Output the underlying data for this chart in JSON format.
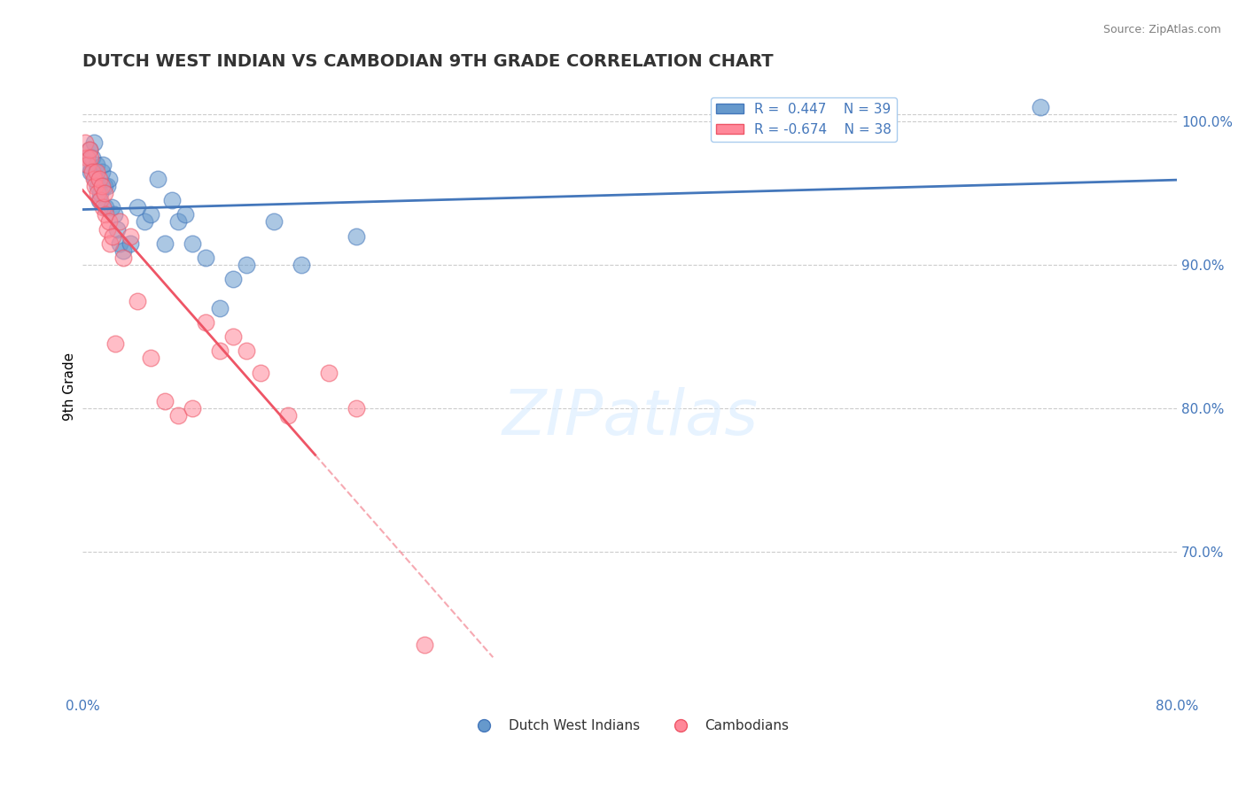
{
  "title": "DUTCH WEST INDIAN VS CAMBODIAN 9TH GRADE CORRELATION CHART",
  "source": "Source: ZipAtlas.com",
  "xlabel_bottom": "",
  "ylabel": "9th Grade",
  "xlim": [
    0.0,
    80.0
  ],
  "ylim": [
    60.0,
    103.0
  ],
  "x_ticks": [
    0.0,
    80.0
  ],
  "x_tick_labels": [
    "0.0%",
    "80.0%"
  ],
  "y_ticks": [
    70.0,
    80.0,
    90.0,
    100.0
  ],
  "y_tick_labels": [
    "70.0%",
    "80.0%",
    "90.0%",
    "100.0%"
  ],
  "blue_color": "#6699CC",
  "pink_color": "#FF8899",
  "blue_color_line": "#4477BB",
  "pink_color_line": "#EE5566",
  "blue_R": 0.447,
  "blue_N": 39,
  "pink_R": -0.674,
  "pink_N": 38,
  "legend_label_blue": "Dutch West Indians",
  "legend_label_pink": "Cambodians",
  "watermark": "ZIPatlas",
  "background_color": "#FFFFFF",
  "grid_color": "#CCCCCC",
  "blue_x": [
    0.3,
    0.5,
    0.6,
    0.7,
    0.8,
    0.9,
    1.0,
    1.1,
    1.2,
    1.3,
    1.4,
    1.5,
    1.6,
    1.7,
    1.8,
    1.9,
    2.1,
    2.3,
    2.5,
    2.7,
    3.0,
    3.5,
    4.0,
    4.5,
    5.0,
    5.5,
    6.0,
    6.5,
    7.0,
    7.5,
    8.0,
    9.0,
    10.0,
    11.0,
    12.0,
    14.0,
    16.0,
    20.0,
    70.0
  ],
  "blue_y": [
    97.0,
    98.0,
    96.5,
    97.5,
    98.5,
    96.0,
    97.0,
    95.5,
    94.5,
    95.0,
    96.5,
    97.0,
    95.5,
    94.0,
    95.5,
    96.0,
    94.0,
    93.5,
    92.5,
    91.5,
    91.0,
    91.5,
    94.0,
    93.0,
    93.5,
    96.0,
    91.5,
    94.5,
    93.0,
    93.5,
    91.5,
    90.5,
    87.0,
    89.0,
    90.0,
    93.0,
    90.0,
    92.0,
    101.0
  ],
  "pink_x": [
    0.2,
    0.3,
    0.4,
    0.5,
    0.6,
    0.7,
    0.8,
    0.9,
    1.0,
    1.1,
    1.2,
    1.3,
    1.4,
    1.5,
    1.6,
    1.7,
    1.8,
    1.9,
    2.0,
    2.2,
    2.4,
    2.7,
    3.0,
    3.5,
    4.0,
    5.0,
    6.0,
    7.0,
    8.0,
    9.0,
    10.0,
    11.0,
    12.0,
    13.0,
    15.0,
    18.0,
    20.0,
    25.0
  ],
  "pink_y": [
    98.5,
    97.5,
    97.0,
    98.0,
    97.5,
    96.5,
    96.0,
    95.5,
    96.5,
    95.0,
    96.0,
    94.5,
    95.5,
    94.0,
    95.0,
    93.5,
    92.5,
    93.0,
    91.5,
    92.0,
    84.5,
    93.0,
    90.5,
    92.0,
    87.5,
    83.5,
    80.5,
    79.5,
    80.0,
    86.0,
    84.0,
    85.0,
    84.0,
    82.5,
    79.5,
    82.5,
    80.0,
    63.5
  ]
}
